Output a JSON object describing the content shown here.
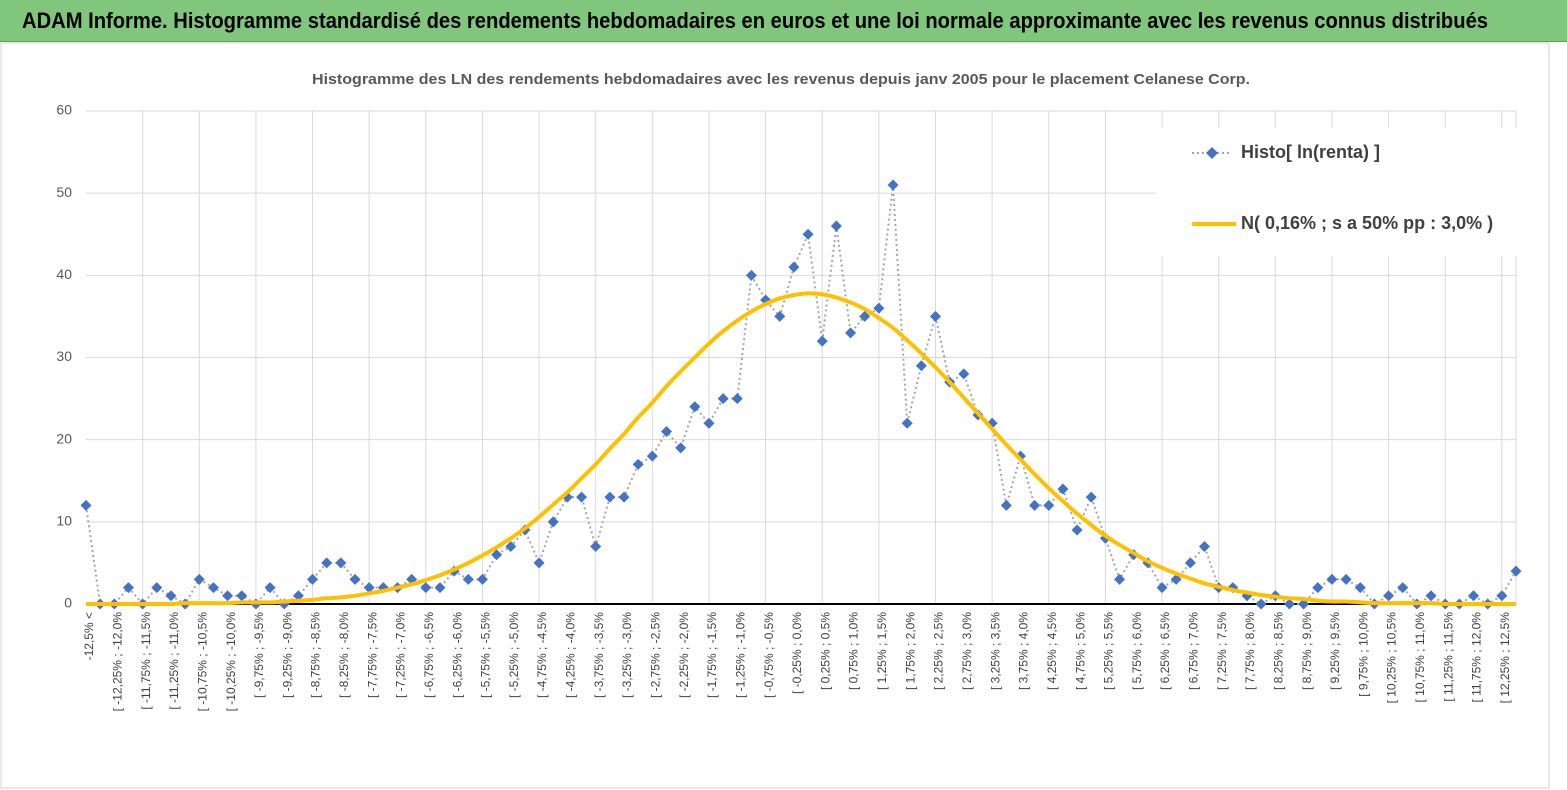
{
  "header": {
    "title": "ADAM Informe. Histogramme standardisé des rendements hebdomadaires en euros et une loi normale approximante avec les revenus connus distribués"
  },
  "chart_data": {
    "type": "line",
    "title": "Histogramme des LN des rendements hebdomadaires avec les revenus depuis janv 2005 pour le placement Celanese Corp.",
    "categories": [
      "-12,5% <",
      null,
      "[ -12,25% ; -12,0%",
      null,
      "[ -11,75% ; -11,5%",
      null,
      "[ -11,25% ; -11,0%",
      null,
      "[ -10,75% ; -10,5%",
      null,
      "[ -10,25% ; -10,0%",
      null,
      "[ -9,75% ; -9,5%",
      null,
      "[ -9,25% ; -9,0%",
      null,
      "[ -8,75% ; -8,5%",
      null,
      "[ -8,25% ; -8,0%",
      null,
      "[ -7,75% ; -7,5%",
      null,
      "[ -7,25% ; -7,0%",
      null,
      "[ -6,75% ; -6,5%",
      null,
      "[ -6,25% ; -6,0%",
      null,
      "[ -5,75% ; -5,5%",
      null,
      "[ -5,25% ; -5,0%",
      null,
      "[ -4,75% ; -4,5%",
      null,
      "[ -4,25% ; -4,0%",
      null,
      "[ -3,75% ; -3,5%",
      null,
      "[ -3,25% ; -3,0%",
      null,
      "[ -2,75% ; -2,5%",
      null,
      "[ -2,25% ; -2,0%",
      null,
      "[ -1,75% ; -1,5%",
      null,
      "[ -1,25% ; -1,0%",
      null,
      "[ -0,75% ; -0,5%",
      null,
      "[ -0,25% ; 0,0%",
      null,
      "[ 0,25% ; 0,5%",
      null,
      "[ 0,75% ; 1,0%",
      null,
      "[ 1,25% ; 1,5%",
      null,
      "[ 1,75% ; 2,0%",
      null,
      "[ 2,25% ; 2,5%",
      null,
      "[ 2,75% ; 3,0%",
      null,
      "[ 3,25% ; 3,5%",
      null,
      "[ 3,75% ; 4,0%",
      null,
      "[ 4,25% ; 4,5%",
      null,
      "[ 4,75% ; 5,0%",
      null,
      "[ 5,25% ; 5,5%",
      null,
      "[ 5,75% ; 6,0%",
      null,
      "[ 6,25% ; 6,5%",
      null,
      "[ 6,75% ; 7,0%",
      null,
      "[ 7,25% ; 7,5%",
      null,
      "[ 7,75% ; 8,0%",
      null,
      "[ 8,25% ; 8,5%",
      null,
      "[ 8,75% ; 9,0%",
      null,
      "[ 9,25% ; 9,5%",
      null,
      "[ 9,75% ; 10,0%",
      null,
      "[ 10,25% ; 10,5%",
      null,
      "[ 10,75% ; 11,0%",
      null,
      "[ 11,25% ; 11,5%",
      null,
      "[ 11,75% ; 12,0%",
      null,
      "[ 12,25% ; 12,5%",
      null
    ],
    "series": [
      {
        "name": "Histo[ ln(renta) ]",
        "color": "#4472c4",
        "values": [
          12,
          0,
          0,
          2,
          0,
          2,
          1,
          0,
          3,
          2,
          1,
          1,
          0,
          2,
          0,
          1,
          3,
          5,
          5,
          3,
          2,
          2,
          2,
          3,
          2,
          2,
          4,
          3,
          3,
          6,
          7,
          9,
          5,
          10,
          13,
          13,
          7,
          13,
          13,
          17,
          18,
          21,
          19,
          24,
          22,
          25,
          25,
          40,
          37,
          35,
          41,
          45,
          32,
          46,
          33,
          35,
          36,
          51,
          22,
          29,
          35,
          27,
          28,
          23,
          22,
          12,
          18,
          12,
          12,
          14,
          9,
          13,
          8,
          3,
          6,
          5,
          2,
          3,
          5,
          7,
          2,
          2,
          1,
          0,
          1,
          0,
          0,
          2,
          3,
          3,
          2,
          0,
          1,
          2,
          0,
          1,
          0,
          0,
          1,
          0,
          1,
          4
        ]
      },
      {
        "name": "N( 0,16% ; s a 50% pp : 3,0% )",
        "color": "#ffc000",
        "values": [
          0,
          0,
          0,
          0,
          0,
          0,
          0,
          0.1,
          0.1,
          0.1,
          0.1,
          0.2,
          0.2,
          0.2,
          0.3,
          0.4,
          0.5,
          0.7,
          0.8,
          1.0,
          1.3,
          1.6,
          2.0,
          2.4,
          2.9,
          3.5,
          4.2,
          5.0,
          5.9,
          6.9,
          8.0,
          9.2,
          10.6,
          12.1,
          13.6,
          15.3,
          17.0,
          18.9,
          20.7,
          22.7,
          24.5,
          26.5,
          28.3,
          30.0,
          31.7,
          33.2,
          34.5,
          35.6,
          36.5,
          37.2,
          37.6,
          37.8,
          37.7,
          37.3,
          36.7,
          35.9,
          34.8,
          33.6,
          32.1,
          30.5,
          28.8,
          27.0,
          25.1,
          23.2,
          21.3,
          19.4,
          17.6,
          15.8,
          14.1,
          12.5,
          11.0,
          9.6,
          8.3,
          7.2,
          6.2,
          5.2,
          4.4,
          3.7,
          3.1,
          2.5,
          2.1,
          1.7,
          1.4,
          1.1,
          0.9,
          0.7,
          0.6,
          0.4,
          0.3,
          0.3,
          0.2,
          0.1,
          0.1,
          0.1,
          0.1,
          0.1,
          0,
          0,
          0,
          0,
          0,
          0
        ]
      }
    ],
    "ylim": [
      0,
      60
    ],
    "yticks": [
      0,
      10,
      20,
      30,
      40,
      50,
      60
    ],
    "grid": true,
    "legend": "top-right"
  }
}
